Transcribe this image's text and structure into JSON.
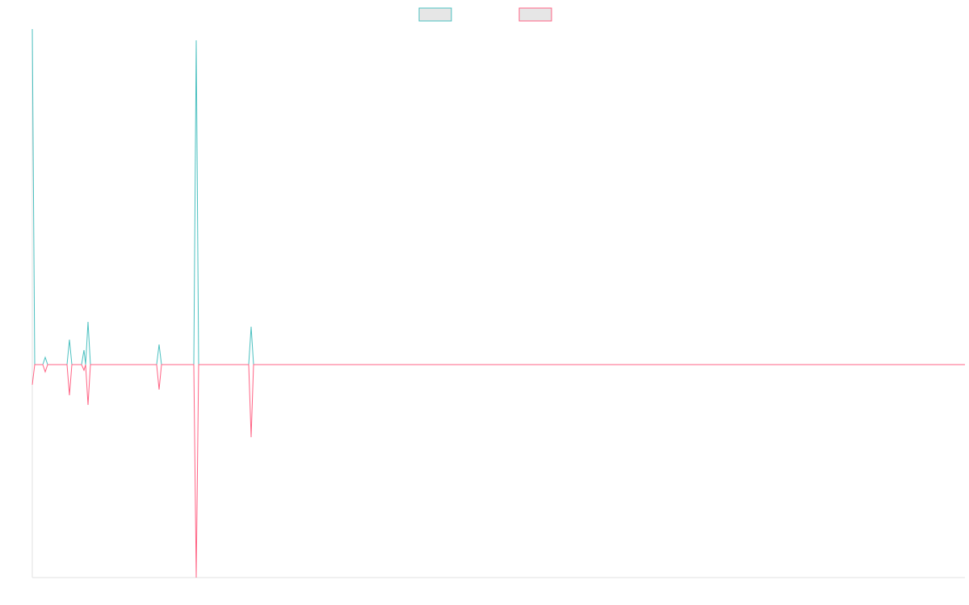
{
  "chart_data": {
    "type": "line",
    "x": [
      0,
      3,
      13,
      16,
      19,
      43,
      46,
      49,
      61,
      64,
      66,
      69,
      72,
      154,
      157,
      160,
      200,
      203,
      206,
      268,
      271,
      274,
      1155
    ],
    "series": [
      {
        "color": "#4bc0c0",
        "values": [
          416,
          0,
          0,
          9,
          0,
          0,
          31,
          0,
          0,
          18,
          0,
          53,
          0,
          0,
          25,
          0,
          0,
          402,
          0,
          0,
          47,
          0,
          0
        ]
      },
      {
        "color": "#ff6384",
        "values": [
          -25,
          0,
          0,
          -9,
          0,
          0,
          -38,
          0,
          0,
          -7,
          0,
          -50,
          0,
          0,
          -31,
          0,
          0,
          -264,
          0,
          0,
          -90,
          0,
          0
        ]
      }
    ],
    "xlim": [
      0,
      1155
    ],
    "ylim": [
      -264,
      416
    ],
    "legend": "top"
  }
}
